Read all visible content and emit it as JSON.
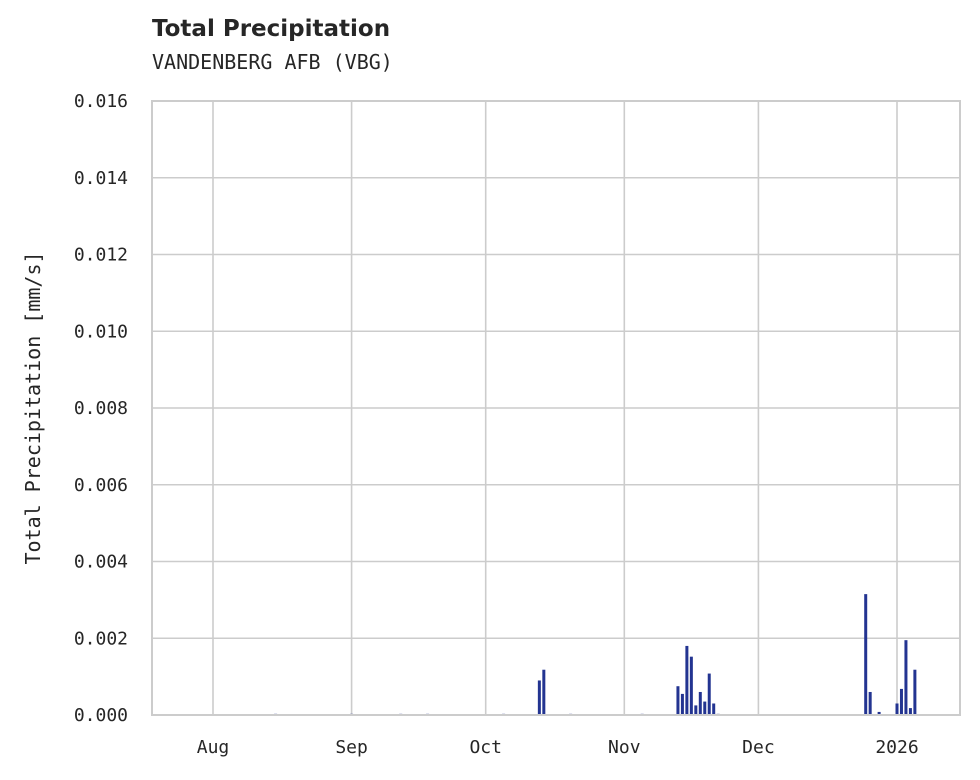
{
  "chart_data": {
    "type": "bar",
    "title": "Total Precipitation",
    "subtitle": "VANDENBERG AFB (VBG)",
    "xlabel": "",
    "ylabel": "Total Precipitation [mm/s]",
    "ylim": [
      0,
      0.016
    ],
    "yticks": [
      "0.000",
      "0.002",
      "0.004",
      "0.006",
      "0.008",
      "0.010",
      "0.012",
      "0.014",
      "0.016"
    ],
    "xticks": [
      "Aug",
      "Sep",
      "Oct",
      "Nov",
      "Dec",
      "2026"
    ],
    "grid": true,
    "color": "#233491",
    "x": [
      "2025-08-15",
      "2025-09-01",
      "2025-09-12",
      "2025-09-18",
      "2025-10-05",
      "2025-10-13",
      "2025-10-14",
      "2025-10-20",
      "2025-11-05",
      "2025-11-13",
      "2025-11-14",
      "2025-11-15",
      "2025-11-16",
      "2025-11-17",
      "2025-11-18",
      "2025-11-19",
      "2025-11-20",
      "2025-11-21",
      "2025-11-22",
      "2025-12-25",
      "2025-12-26",
      "2025-12-28",
      "2026-01-01",
      "2026-01-02",
      "2026-01-03",
      "2026-01-04",
      "2026-01-05"
    ],
    "values": [
      3e-05,
      3e-05,
      3e-05,
      3e-05,
      3e-05,
      0.0009,
      0.00118,
      3e-05,
      3e-05,
      0.00075,
      0.00055,
      0.0018,
      0.00152,
      0.00025,
      0.0006,
      0.00035,
      0.00108,
      0.0003,
      3e-05,
      0.00315,
      0.0006,
      8e-05,
      0.0003,
      0.00068,
      0.00195,
      0.00018,
      0.00118
    ]
  }
}
